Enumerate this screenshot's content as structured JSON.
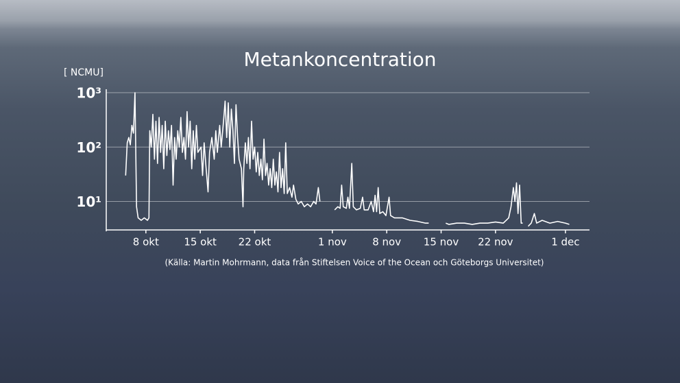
{
  "chart_data": {
    "type": "line",
    "title": "Metankoncentration",
    "y_label": "[ NCMU]",
    "source": "(Källa: Martin Mohrmann, data från Stiftelsen Voice of the Ocean och Göteborgs Universitet)",
    "color": "#ffffff",
    "log_y": true,
    "grid": true,
    "xlim": [
      2.9,
      65.1
    ],
    "ylim": [
      3,
      1000
    ],
    "yticks": [
      {
        "value": 10,
        "label": "10¹"
      },
      {
        "value": 100,
        "label": "10²"
      },
      {
        "value": 1000,
        "label": "10³"
      }
    ],
    "xticks": [
      {
        "value": 8,
        "label": "8 okt"
      },
      {
        "value": 15,
        "label": "15 okt"
      },
      {
        "value": 22,
        "label": "22 okt"
      },
      {
        "value": 32,
        "label": "1 nov"
      },
      {
        "value": 39,
        "label": "8 nov"
      },
      {
        "value": 46,
        "label": "15 nov"
      },
      {
        "value": 53,
        "label": "22 nov"
      },
      {
        "value": 62,
        "label": "1 dec"
      }
    ],
    "x": [
      5.4,
      5.6,
      5.8,
      6.0,
      6.2,
      6.4,
      6.6,
      6.8,
      7.0,
      7.4,
      7.8,
      8.2,
      8.4,
      8.5,
      8.7,
      8.9,
      9.1,
      9.3,
      9.5,
      9.7,
      9.9,
      10.1,
      10.3,
      10.5,
      10.7,
      10.9,
      11.1,
      11.3,
      11.5,
      11.7,
      11.9,
      12.1,
      12.3,
      12.5,
      12.7,
      12.9,
      13.1,
      13.3,
      13.5,
      13.7,
      13.9,
      14.1,
      14.3,
      14.5,
      14.7,
      15.1,
      15.3,
      15.5,
      15.7,
      16.0,
      16.2,
      16.5,
      16.8,
      17.0,
      17.2,
      17.5,
      17.7,
      18.0,
      18.2,
      18.4,
      18.6,
      18.8,
      19.0,
      19.2,
      19.4,
      19.6,
      19.8,
      20.0,
      20.3,
      20.5,
      20.6,
      20.8,
      21.0,
      21.2,
      21.4,
      21.6,
      21.8,
      22.0,
      22.2,
      22.4,
      22.6,
      22.8,
      23.0,
      23.2,
      23.4,
      23.6,
      23.8,
      24.0,
      24.2,
      24.4,
      24.6,
      24.8,
      25.0,
      25.2,
      25.4,
      25.6,
      25.8,
      26.0,
      26.2,
      26.5,
      26.8,
      27.0,
      27.3,
      27.6,
      28.0,
      28.4,
      28.8,
      29.2,
      29.6,
      29.9,
      30.2,
      30.4,
      31.0,
      32.3,
      32.7,
      33.0,
      33.2,
      33.4,
      33.8,
      34.0,
      34.2,
      34.5,
      34.7,
      35.1,
      35.6,
      35.9,
      36.1,
      36.6,
      37.0,
      37.3,
      37.5,
      37.7,
      37.9,
      38.1,
      38.5,
      38.9,
      39.3,
      39.5,
      40.0,
      41.0,
      42.0,
      43.0,
      44.0,
      44.4,
      44.6,
      46.6,
      47.0,
      48.0,
      49.0,
      50.0,
      51.0,
      52.0,
      53.0,
      54.0,
      54.7,
      55.0,
      55.3,
      55.5,
      55.7,
      55.9,
      56.1,
      56.3,
      56.5,
      56.8,
      57.2,
      57.6,
      58.0,
      58.3,
      59.0,
      60.0,
      61.0,
      62.0,
      62.5
    ],
    "values": [
      30,
      120,
      150,
      110,
      250,
      180,
      1000,
      8,
      5,
      4.5,
      5,
      4.5,
      5,
      200,
      100,
      400,
      60,
      300,
      50,
      350,
      80,
      250,
      40,
      300,
      70,
      200,
      90,
      250,
      20,
      150,
      60,
      200,
      100,
      350,
      80,
      150,
      60,
      450,
      100,
      300,
      40,
      200,
      60,
      250,
      80,
      100,
      30,
      120,
      50,
      15,
      80,
      150,
      60,
      200,
      80,
      250,
      100,
      300,
      700,
      150,
      650,
      100,
      500,
      200,
      50,
      600,
      150,
      60,
      40,
      8,
      40,
      120,
      50,
      150,
      40,
      300,
      60,
      100,
      35,
      80,
      30,
      60,
      25,
      140,
      30,
      50,
      20,
      40,
      18,
      60,
      20,
      35,
      15,
      80,
      18,
      40,
      14,
      120,
      14,
      18,
      12,
      20,
      11,
      9,
      10,
      8,
      9,
      8,
      10,
      9,
      18,
      10,
      null,
      7,
      8,
      7.5,
      20,
      8,
      7.5,
      12,
      7.5,
      50,
      8,
      7,
      7.5,
      12,
      7,
      7,
      10,
      6.5,
      13,
      6.5,
      18,
      6,
      6.5,
      5.5,
      12,
      5.5,
      5,
      5,
      4.5,
      4.3,
      4,
      4,
      null,
      4,
      3.8,
      4,
      4,
      3.8,
      4,
      4,
      4.2,
      4,
      5,
      8,
      18,
      10,
      22,
      6,
      20,
      4,
      4,
      null,
      3.5,
      4,
      6,
      4,
      4.5,
      4,
      4.3,
      4,
      3.8
    ]
  }
}
